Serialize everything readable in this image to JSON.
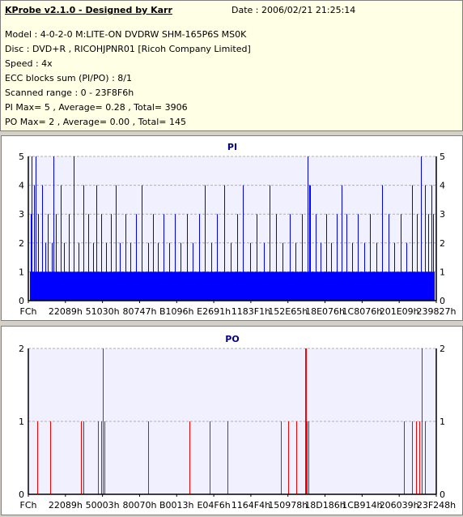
{
  "info": {
    "title": "KProbe v2.1.0 - Designed by Karr",
    "date": "Date : 2006/02/21 21:25:14",
    "lines": [
      "Model : 4-0-2-0 M:LITE-ON DVDRW SHM-165P6S MS0K",
      "Disc : DVD+R , RICOHJPNR01 [Ricoh Company Limited]",
      "Speed : 4x",
      "ECC blocks sum (PI/PO) : 8/1",
      "Scanned range : 0 - 23F8F6h",
      "PI Max= 5 , Average= 0.28 , Total= 3906",
      "PO Max= 2 , Average= 0.00 , Total= 145"
    ]
  },
  "colors": {
    "pi": "#0000ff",
    "po": "#ff0000",
    "plot_bg": "#f0f0ff",
    "title": "#000080"
  },
  "chart_data": [
    {
      "type": "bar",
      "title": "PI",
      "ylim": [
        0,
        5
      ],
      "yticks": [
        "0",
        "1",
        "2",
        "3",
        "4",
        "5"
      ],
      "xticks": [
        "FCh",
        "22089h",
        "51030h",
        "80747h",
        "B1096h",
        "E2691h",
        "1183F1h",
        "152E65h",
        "18E076h",
        "1C8076h",
        "201E09h",
        "239827h"
      ],
      "x_range": [
        0,
        2357494
      ],
      "baseline": 1,
      "spikes": [
        {
          "x": 12000,
          "v": 3
        },
        {
          "x": 18000,
          "v": 5
        },
        {
          "x": 32000,
          "v": 4
        },
        {
          "x": 42000,
          "v": 5
        },
        {
          "x": 55000,
          "v": 3
        },
        {
          "x": 78000,
          "v": 4
        },
        {
          "x": 96000,
          "v": 2
        },
        {
          "x": 112000,
          "v": 3
        },
        {
          "x": 135000,
          "v": 2
        },
        {
          "x": 146000,
          "v": 5
        },
        {
          "x": 160000,
          "v": 3
        },
        {
          "x": 186000,
          "v": 4
        },
        {
          "x": 208000,
          "v": 2
        },
        {
          "x": 236000,
          "v": 3
        },
        {
          "x": 262000,
          "v": 5
        },
        {
          "x": 290000,
          "v": 2
        },
        {
          "x": 318000,
          "v": 4
        },
        {
          "x": 346000,
          "v": 3
        },
        {
          "x": 372000,
          "v": 2
        },
        {
          "x": 395000,
          "v": 4
        },
        {
          "x": 420000,
          "v": 3
        },
        {
          "x": 448000,
          "v": 2
        },
        {
          "x": 476000,
          "v": 3
        },
        {
          "x": 505000,
          "v": 4
        },
        {
          "x": 530000,
          "v": 2
        },
        {
          "x": 560000,
          "v": 3
        },
        {
          "x": 590000,
          "v": 2
        },
        {
          "x": 620000,
          "v": 3
        },
        {
          "x": 655000,
          "v": 4
        },
        {
          "x": 690000,
          "v": 2
        },
        {
          "x": 720000,
          "v": 3
        },
        {
          "x": 750000,
          "v": 2
        },
        {
          "x": 780000,
          "v": 3
        },
        {
          "x": 812000,
          "v": 2
        },
        {
          "x": 845000,
          "v": 3
        },
        {
          "x": 880000,
          "v": 2
        },
        {
          "x": 915000,
          "v": 3
        },
        {
          "x": 950000,
          "v": 2
        },
        {
          "x": 985000,
          "v": 3
        },
        {
          "x": 1020000,
          "v": 4
        },
        {
          "x": 1055000,
          "v": 2
        },
        {
          "x": 1090000,
          "v": 3
        },
        {
          "x": 1130000,
          "v": 4
        },
        {
          "x": 1170000,
          "v": 2
        },
        {
          "x": 1205000,
          "v": 3
        },
        {
          "x": 1240000,
          "v": 4
        },
        {
          "x": 1280000,
          "v": 2
        },
        {
          "x": 1320000,
          "v": 3
        },
        {
          "x": 1360000,
          "v": 2
        },
        {
          "x": 1395000,
          "v": 4
        },
        {
          "x": 1430000,
          "v": 3
        },
        {
          "x": 1470000,
          "v": 2
        },
        {
          "x": 1510000,
          "v": 3
        },
        {
          "x": 1545000,
          "v": 2
        },
        {
          "x": 1580000,
          "v": 3
        },
        {
          "x": 1615000,
          "v": 5
        },
        {
          "x": 1622000,
          "v": 4
        },
        {
          "x": 1630000,
          "v": 4
        },
        {
          "x": 1660000,
          "v": 3
        },
        {
          "x": 1690000,
          "v": 2
        },
        {
          "x": 1720000,
          "v": 3
        },
        {
          "x": 1750000,
          "v": 2
        },
        {
          "x": 1780000,
          "v": 3
        },
        {
          "x": 1810000,
          "v": 4
        },
        {
          "x": 1840000,
          "v": 3
        },
        {
          "x": 1870000,
          "v": 2
        },
        {
          "x": 1905000,
          "v": 3
        },
        {
          "x": 1940000,
          "v": 2
        },
        {
          "x": 1975000,
          "v": 3
        },
        {
          "x": 2010000,
          "v": 2
        },
        {
          "x": 2045000,
          "v": 4
        },
        {
          "x": 2080000,
          "v": 3
        },
        {
          "x": 2115000,
          "v": 2
        },
        {
          "x": 2150000,
          "v": 3
        },
        {
          "x": 2185000,
          "v": 2
        },
        {
          "x": 2215000,
          "v": 4
        },
        {
          "x": 2245000,
          "v": 3
        },
        {
          "x": 2270000,
          "v": 5
        },
        {
          "x": 2290000,
          "v": 4
        },
        {
          "x": 2310000,
          "v": 3
        },
        {
          "x": 2328000,
          "v": 4
        },
        {
          "x": 2340000,
          "v": 3
        }
      ]
    },
    {
      "type": "bar",
      "title": "PO",
      "ylim": [
        0,
        2
      ],
      "yticks": [
        "0",
        "1",
        "2"
      ],
      "xticks": [
        "FCh",
        "22089h",
        "50003h",
        "80070h",
        "B0013h",
        "E04F6h",
        "1164F4h",
        "150978h",
        "18D186h",
        "1CB914h",
        "206039h",
        "23F248h"
      ],
      "x_range": [
        0,
        2357494
      ],
      "baseline": 0,
      "spikes": [
        {
          "x": 50000,
          "v": 1
        },
        {
          "x": 128000,
          "v": 1
        },
        {
          "x": 305000,
          "v": 1
        },
        {
          "x": 320000,
          "v": 1
        },
        {
          "x": 400000,
          "v": 1
        },
        {
          "x": 420000,
          "v": 1
        },
        {
          "x": 432000,
          "v": 2
        },
        {
          "x": 438000,
          "v": 1
        },
        {
          "x": 442000,
          "v": 1
        },
        {
          "x": 690000,
          "v": 1
        },
        {
          "x": 930000,
          "v": 1
        },
        {
          "x": 1050000,
          "v": 1
        },
        {
          "x": 1150000,
          "v": 1
        },
        {
          "x": 1460000,
          "v": 1
        },
        {
          "x": 1500000,
          "v": 1
        },
        {
          "x": 1550000,
          "v": 1
        },
        {
          "x": 1600000,
          "v": 2
        },
        {
          "x": 1604000,
          "v": 2
        },
        {
          "x": 1608000,
          "v": 1
        },
        {
          "x": 1620000,
          "v": 1
        },
        {
          "x": 2170000,
          "v": 1
        },
        {
          "x": 2215000,
          "v": 1
        },
        {
          "x": 2240000,
          "v": 1
        },
        {
          "x": 2258000,
          "v": 1
        },
        {
          "x": 2272000,
          "v": 2
        },
        {
          "x": 2292000,
          "v": 1
        }
      ]
    }
  ]
}
